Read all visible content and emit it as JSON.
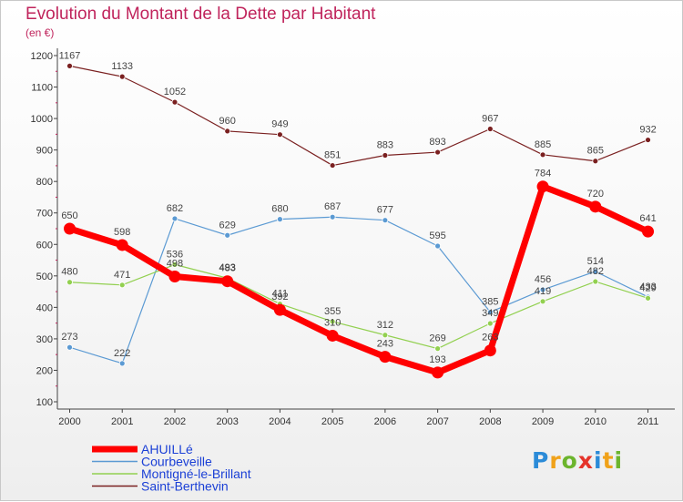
{
  "title": "Evolution du Montant de la Dette par Habitant",
  "unit": "(en €)",
  "logo": {
    "letters": [
      "P",
      "r",
      "o",
      "x",
      "i",
      "t",
      "i"
    ],
    "colors": [
      "#2b8bd8",
      "#f0a21a",
      "#6cb52d",
      "#e5332a",
      "#2b8bd8",
      "#f0a21a",
      "#6cb52d"
    ]
  },
  "chart_data": {
    "type": "line",
    "title": "Evolution du Montant de la Dette par Habitant",
    "ylabel": "(en €)",
    "xlabel": "",
    "x": [
      "2000",
      "2001",
      "2002",
      "2003",
      "2004",
      "2005",
      "2006",
      "2007",
      "2008",
      "2009",
      "2010",
      "2011"
    ],
    "ylim": [
      100,
      1200
    ],
    "yticks": [
      100,
      200,
      300,
      400,
      500,
      600,
      700,
      800,
      900,
      1000,
      1100,
      1200
    ],
    "grid": false,
    "legend": "bottom-left",
    "series": [
      {
        "name": "Saint-Berthevin",
        "color": "#7a2020",
        "values": [
          1167,
          1133,
          1052,
          960,
          949,
          851,
          883,
          893,
          967,
          885,
          865,
          932
        ]
      },
      {
        "name": "Courbeveille",
        "color": "#5b9ad3",
        "values": [
          273,
          222,
          682,
          629,
          680,
          687,
          677,
          595,
          385,
          456,
          514,
          433
        ]
      },
      {
        "name": "Montigné-le-Brillant",
        "color": "#92d050",
        "values": [
          480,
          471,
          536,
          493,
          411,
          355,
          312,
          269,
          349,
          419,
          482,
          429
        ]
      },
      {
        "name": "AHUILLé",
        "color": "#ff0000",
        "values": [
          650,
          598,
          498,
          483,
          392,
          310,
          243,
          193,
          263,
          784,
          720,
          641
        ]
      }
    ],
    "legend_order": [
      "AHUILLé",
      "Courbeveille",
      "Montigné-le-Brillant",
      "Saint-Berthevin"
    ]
  }
}
